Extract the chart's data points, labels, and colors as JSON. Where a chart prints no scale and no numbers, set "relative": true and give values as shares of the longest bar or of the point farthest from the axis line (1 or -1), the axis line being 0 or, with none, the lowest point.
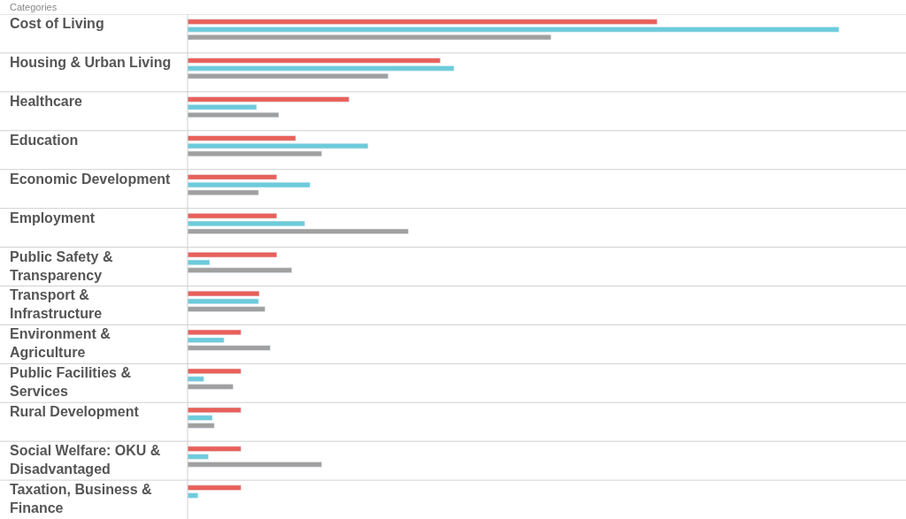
{
  "chart_data": {
    "type": "bar",
    "orientation": "horizontal",
    "relative": true,
    "ylabel": "Categories",
    "grid": "y",
    "categories": [
      "Cost of Living",
      "Housing & Urban Living",
      "Healthcare",
      "Education",
      "Economic Development",
      "Employment",
      "Public Safety & Transparency",
      "Transport & Infrastructure",
      "Environment & Agriculture",
      "Public Facilities & Services",
      "Rural Development",
      "Social Welfare: OKU & Disadvantaged",
      "Taxation, Business & Finance"
    ],
    "series": [
      {
        "color": "#e8605a",
        "values": [
          0.721,
          0.388,
          0.248,
          0.166,
          0.137,
          0.137,
          0.137,
          0.11,
          0.082,
          0.082,
          0.082,
          0.082,
          0.082
        ]
      },
      {
        "color": "#6dcbdb",
        "values": [
          1,
          0.409,
          0.106,
          0.277,
          0.188,
          0.18,
          0.034,
          0.109,
          0.056,
          0.025,
          0.038,
          0.032,
          0.016
        ]
      },
      {
        "color": "#a0a0a0",
        "values": [
          0.558,
          0.308,
          0.14,
          0.206,
          0.109,
          0.339,
          0.16,
          0.119,
          0.127,
          0.07,
          0.041,
          0.206,
          null
        ]
      }
    ]
  }
}
